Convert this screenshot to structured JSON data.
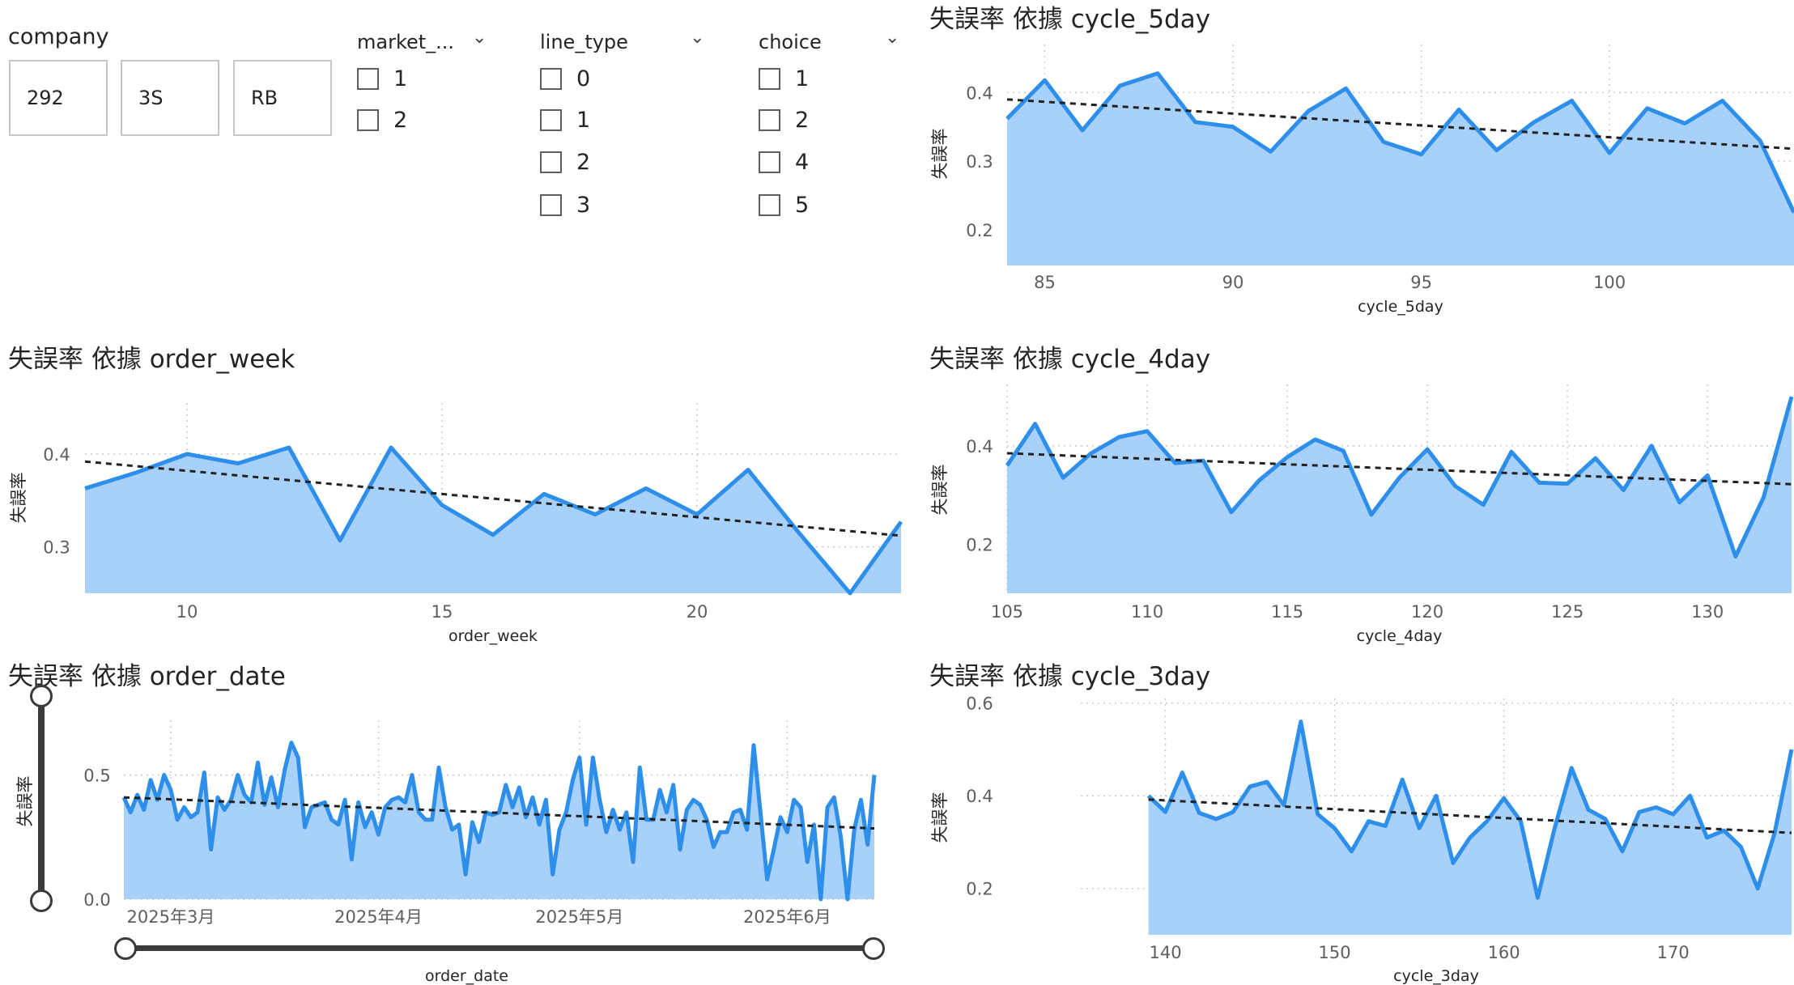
{
  "slicers": {
    "company": {
      "title": "company",
      "tiles": [
        "292",
        "3S",
        "RB"
      ]
    },
    "market": {
      "title": "market_...",
      "options": [
        "1",
        "2"
      ]
    },
    "line_type": {
      "title": "line_type",
      "options": [
        "0",
        "1",
        "2",
        "3"
      ]
    },
    "choice": {
      "title": "choice",
      "options": [
        "1",
        "2",
        "4",
        "5"
      ]
    }
  },
  "colors": {
    "area": "#A7D0FA",
    "line": "#2E8FEB",
    "trend": "#222222",
    "grid": "#C8C8C8",
    "axis_text": "#605E5C"
  },
  "chart_data": [
    {
      "type": "area",
      "title": "失誤率 依據 cycle_5day",
      "xlabel": "cycle_5day",
      "ylabel": "失誤率",
      "xlim": [
        84,
        104.9
      ],
      "ylim": [
        0.148,
        0.47
      ],
      "xticks": [
        "85",
        "90",
        "95",
        "100"
      ],
      "xtick_values": [
        85,
        90,
        95,
        100
      ],
      "yticks": [
        "0.2",
        "0.3",
        "0.4"
      ],
      "ytick_values": [
        0.2,
        0.3,
        0.4
      ],
      "x": [
        84,
        85,
        86,
        87,
        88,
        89,
        90,
        91,
        92,
        93,
        94,
        95,
        96,
        97,
        98,
        99,
        100,
        101,
        102,
        103,
        104,
        104.9
      ],
      "y": [
        0.362,
        0.418,
        0.345,
        0.41,
        0.428,
        0.357,
        0.35,
        0.314,
        0.373,
        0.406,
        0.328,
        0.31,
        0.375,
        0.316,
        0.357,
        0.388,
        0.312,
        0.377,
        0.355,
        0.388,
        0.33,
        0.225
      ],
      "trend": [
        [
          84,
          0.39
        ],
        [
          104.9,
          0.318
        ]
      ]
    },
    {
      "type": "area",
      "title": "失誤率 依據 order_week",
      "xlabel": "order_week",
      "ylabel": "失誤率",
      "xlim": [
        8,
        24
      ],
      "ylim": [
        0.25,
        0.455
      ],
      "xticks": [
        "10",
        "15",
        "20"
      ],
      "xtick_values": [
        10,
        15,
        20
      ],
      "yticks": [
        "0.3",
        "0.4"
      ],
      "ytick_values": [
        0.3,
        0.4
      ],
      "x": [
        8,
        9,
        10,
        11,
        12,
        13,
        14,
        15,
        16,
        17,
        18,
        19,
        20,
        21,
        22,
        23,
        24
      ],
      "y": [
        0.363,
        0.38,
        0.4,
        0.39,
        0.407,
        0.307,
        0.407,
        0.345,
        0.313,
        0.357,
        0.335,
        0.363,
        0.335,
        0.383,
        0.315,
        0.25,
        0.327
      ],
      "trend": [
        [
          8,
          0.392
        ],
        [
          24,
          0.312
        ]
      ]
    },
    {
      "type": "area",
      "title": "失誤率 依據 cycle_4day",
      "xlabel": "cycle_4day",
      "ylabel": "失誤率",
      "xlim": [
        105,
        133
      ],
      "ylim": [
        0.1,
        0.525
      ],
      "xticks": [
        "105",
        "110",
        "115",
        "120",
        "125",
        "130"
      ],
      "xtick_values": [
        105,
        110,
        115,
        120,
        125,
        130
      ],
      "yticks": [
        "0.2",
        "0.4"
      ],
      "ytick_values": [
        0.2,
        0.4
      ],
      "x": [
        105,
        106,
        107,
        108,
        109,
        110,
        111,
        112,
        113,
        114,
        115,
        116,
        117,
        118,
        119,
        120,
        121,
        122,
        123,
        124,
        125,
        126,
        127,
        128,
        129,
        130,
        131,
        132,
        133
      ],
      "y": [
        0.36,
        0.445,
        0.335,
        0.385,
        0.418,
        0.43,
        0.365,
        0.37,
        0.265,
        0.33,
        0.377,
        0.413,
        0.39,
        0.26,
        0.335,
        0.393,
        0.318,
        0.28,
        0.388,
        0.325,
        0.323,
        0.375,
        0.31,
        0.4,
        0.285,
        0.34,
        0.175,
        0.295,
        0.5
      ],
      "trend": [
        [
          105,
          0.385
        ],
        [
          133,
          0.322
        ]
      ]
    },
    {
      "type": "area",
      "title": "失誤率 依據 order_date",
      "xlabel": "order_date",
      "ylabel": "失誤率",
      "ylim": [
        0,
        0.72
      ],
      "xticks": [
        "2025年3月",
        "2025年4月",
        "2025年5月",
        "2025年6月"
      ],
      "xtick_values": [
        7,
        38,
        68,
        99
      ],
      "yticks": [
        "0.0",
        "0.5"
      ],
      "ytick_values": [
        0,
        0.5
      ],
      "xlim": [
        0,
        112
      ],
      "y": [
        0.41,
        0.35,
        0.42,
        0.36,
        0.48,
        0.4,
        0.5,
        0.44,
        0.32,
        0.37,
        0.33,
        0.35,
        0.51,
        0.2,
        0.41,
        0.36,
        0.4,
        0.5,
        0.42,
        0.39,
        0.55,
        0.38,
        0.49,
        0.37,
        0.52,
        0.63,
        0.57,
        0.29,
        0.37,
        0.38,
        0.39,
        0.32,
        0.3,
        0.4,
        0.16,
        0.39,
        0.29,
        0.35,
        0.26,
        0.37,
        0.4,
        0.41,
        0.39,
        0.5,
        0.35,
        0.32,
        0.32,
        0.53,
        0.37,
        0.28,
        0.3,
        0.1,
        0.31,
        0.23,
        0.35,
        0.34,
        0.35,
        0.46,
        0.37,
        0.45,
        0.33,
        0.41,
        0.3,
        0.4,
        0.1,
        0.28,
        0.35,
        0.48,
        0.57,
        0.3,
        0.57,
        0.4,
        0.27,
        0.36,
        0.28,
        0.35,
        0.15,
        0.53,
        0.32,
        0.32,
        0.44,
        0.35,
        0.46,
        0.2,
        0.36,
        0.4,
        0.38,
        0.32,
        0.21,
        0.27,
        0.27,
        0.35,
        0.36,
        0.28,
        0.62,
        0.35,
        0.08,
        0.2,
        0.33,
        0.27,
        0.4,
        0.37,
        0.15,
        0.3,
        0.0,
        0.37,
        0.41,
        0.25,
        0.0,
        0.28,
        0.4,
        0.22,
        0.5
      ],
      "trend": [
        [
          0,
          0.41
        ],
        [
          112,
          0.285
        ]
      ]
    },
    {
      "type": "area",
      "title": "失誤率 依據 cycle_3day",
      "xlabel": "cycle_3day",
      "ylabel": "失誤率",
      "xlim": [
        135,
        177
      ],
      "ylim": [
        0.1,
        0.61
      ],
      "xticks": [
        "140",
        "150",
        "160",
        "170"
      ],
      "xtick_values": [
        140,
        150,
        160,
        170
      ],
      "yticks": [
        "0.2",
        "0.4",
        "0.6"
      ],
      "ytick_values": [
        0.2,
        0.4,
        0.6
      ],
      "x": [
        139,
        140,
        141,
        142,
        143,
        144,
        145,
        146,
        147,
        148,
        149,
        150,
        151,
        152,
        153,
        154,
        155,
        156,
        157,
        158,
        159,
        160,
        161,
        162,
        163,
        164,
        165,
        166,
        167,
        168,
        169,
        170,
        171,
        172,
        173,
        174,
        175,
        176,
        177
      ],
      "y": [
        0.4,
        0.365,
        0.45,
        0.363,
        0.35,
        0.365,
        0.42,
        0.43,
        0.38,
        0.56,
        0.36,
        0.33,
        0.28,
        0.345,
        0.335,
        0.435,
        0.33,
        0.4,
        0.255,
        0.31,
        0.345,
        0.395,
        0.345,
        0.18,
        0.33,
        0.46,
        0.37,
        0.35,
        0.28,
        0.365,
        0.375,
        0.36,
        0.4,
        0.31,
        0.325,
        0.29,
        0.2,
        0.32,
        0.5
      ],
      "trend": [
        [
          139,
          0.392
        ],
        [
          177,
          0.32
        ]
      ]
    }
  ]
}
